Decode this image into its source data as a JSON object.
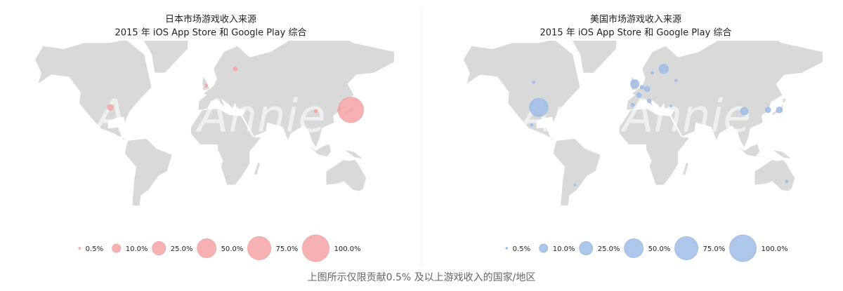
{
  "chart_data": [
    {
      "type": "bubble-map",
      "title": "日本市场游戏收入来源",
      "subtitle": "2015 年 iOS App Store 和 Google Play 综合",
      "watermark": "App Annie",
      "color": "#f5a5a5",
      "x": [
        138,
        -95,
        -2,
        26,
        104,
        127
      ],
      "y": [
        36,
        38,
        53,
        62,
        35,
        36
      ],
      "values": [
        90,
        4.5,
        1,
        2,
        1.5,
        2
      ],
      "legend": {
        "values": [
          0.5,
          10,
          25,
          50,
          75,
          100
        ],
        "value_labels": [
          "0.5%",
          "10.0%",
          "25.0%",
          "50.0%",
          "75.0%",
          "100.0%"
        ]
      }
    },
    {
      "type": "bubble-map",
      "title": "美国市场游戏收入来源",
      "subtitle": "2015 年 iOS App Store 和 Google Play 综合",
      "watermark": "App Annie",
      "color": "#9fbde8",
      "x": [
        -95,
        -100,
        -2,
        26,
        15,
        10,
        5,
        2,
        -4,
        12,
        38,
        104,
        127,
        138,
        145,
        -60,
        -102,
        33
      ],
      "y": [
        38,
        55,
        54,
        62,
        60,
        51,
        52,
        47,
        40,
        43,
        56,
        35,
        36,
        36,
        -31,
        -34,
        23,
        39
      ],
      "values": [
        47,
        1,
        10,
        12,
        1,
        4,
        2,
        3,
        1.5,
        2,
        1,
        8,
        4,
        5,
        1,
        0.5,
        1,
        0.5
      ],
      "legend": {
        "values": [
          0.5,
          10,
          25,
          50,
          75,
          100
        ],
        "value_labels": [
          "0.5%",
          "10.0%",
          "25.0%",
          "50.0%",
          "75.0%",
          "100.0%"
        ]
      }
    }
  ],
  "caption": "上图所示仅限贡献0.5% 及以上游戏收入的国家/地区"
}
